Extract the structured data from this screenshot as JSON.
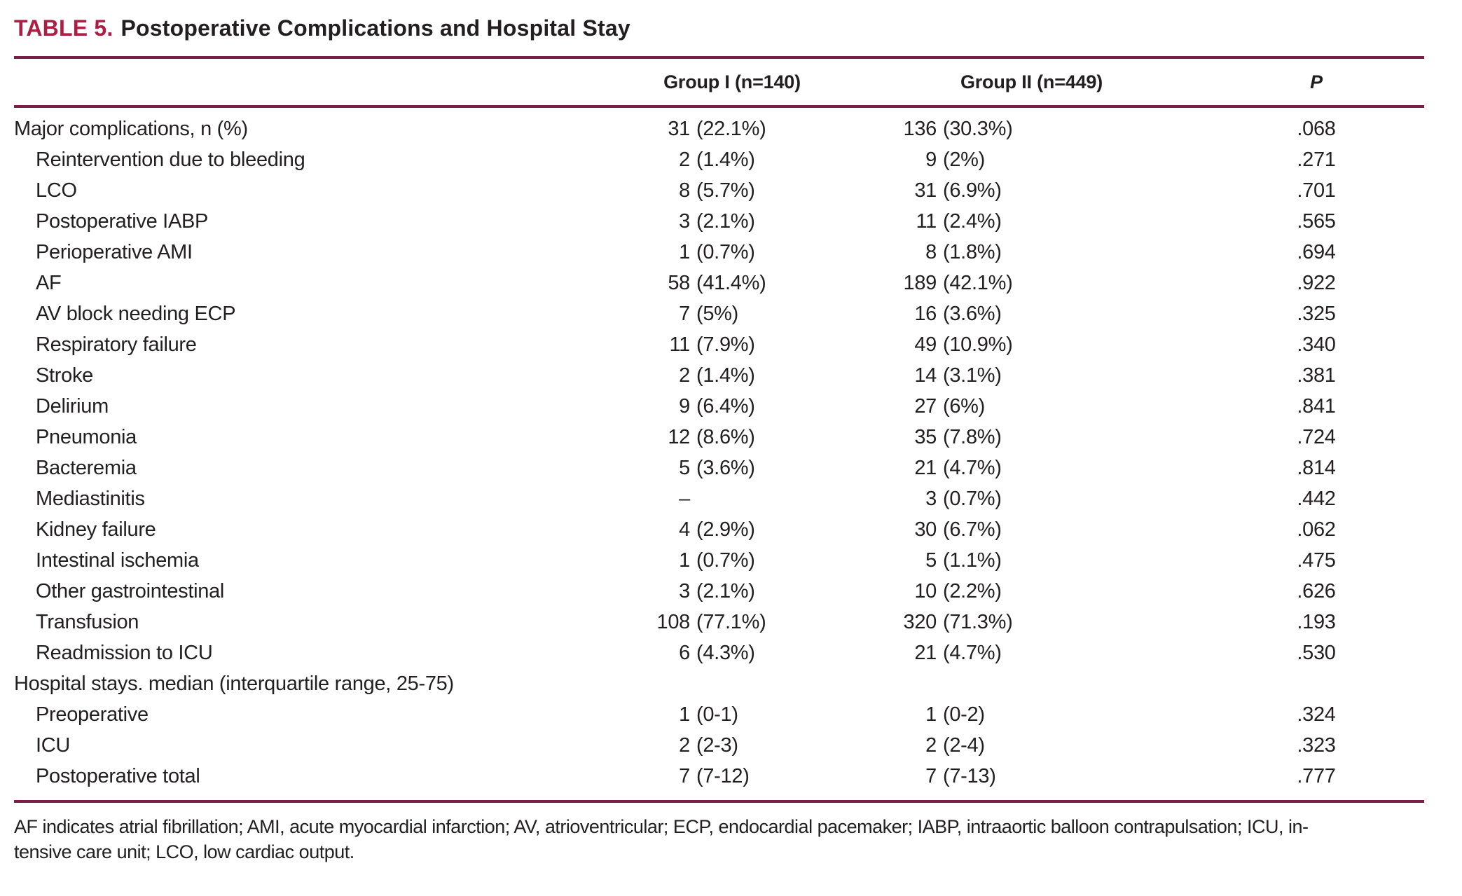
{
  "colors": {
    "accent": "#ad1e45",
    "rule": "#7a2048",
    "ink": "#231f20",
    "background": "#ffffff"
  },
  "title": {
    "label": "TABLE 5.",
    "text": "Postoperative Complications and Hospital Stay"
  },
  "columns": {
    "group1": "Group I (n=140)",
    "group2": "Group II (n=449)",
    "p": "P"
  },
  "rows": [
    {
      "label": "Major complications, n (%)",
      "indent": false,
      "g1": {
        "n": "31",
        "d": "(22.1%)"
      },
      "g2": {
        "n": "136",
        "d": "(30.3%)"
      },
      "p": ".068"
    },
    {
      "label": "Reintervention due to bleeding",
      "indent": true,
      "g1": {
        "n": "2",
        "d": "(1.4%)"
      },
      "g2": {
        "n": "9",
        "d": "(2%)"
      },
      "p": ".271"
    },
    {
      "label": "LCO",
      "indent": true,
      "g1": {
        "n": "8",
        "d": "(5.7%)"
      },
      "g2": {
        "n": "31",
        "d": "(6.9%)"
      },
      "p": ".701"
    },
    {
      "label": "Postoperative IABP",
      "indent": true,
      "g1": {
        "n": "3",
        "d": "(2.1%)"
      },
      "g2": {
        "n": "11",
        "d": "(2.4%)"
      },
      "p": ".565"
    },
    {
      "label": "Perioperative AMI",
      "indent": true,
      "g1": {
        "n": "1",
        "d": "(0.7%)"
      },
      "g2": {
        "n": "8",
        "d": "(1.8%)"
      },
      "p": ".694"
    },
    {
      "label": "AF",
      "indent": true,
      "g1": {
        "n": "58",
        "d": "(41.4%)"
      },
      "g2": {
        "n": "189",
        "d": "(42.1%)"
      },
      "p": ".922"
    },
    {
      "label": "AV block needing ECP",
      "indent": true,
      "g1": {
        "n": "7",
        "d": "(5%)"
      },
      "g2": {
        "n": "16",
        "d": "(3.6%)"
      },
      "p": ".325"
    },
    {
      "label": "Respiratory failure",
      "indent": true,
      "g1": {
        "n": "11",
        "d": "(7.9%)"
      },
      "g2": {
        "n": "49",
        "d": "(10.9%)"
      },
      "p": ".340"
    },
    {
      "label": "Stroke",
      "indent": true,
      "g1": {
        "n": "2",
        "d": "(1.4%)"
      },
      "g2": {
        "n": "14",
        "d": "(3.1%)"
      },
      "p": ".381"
    },
    {
      "label": "Delirium",
      "indent": true,
      "g1": {
        "n": "9",
        "d": "(6.4%)"
      },
      "g2": {
        "n": "27",
        "d": "(6%)"
      },
      "p": ".841"
    },
    {
      "label": "Pneumonia",
      "indent": true,
      "g1": {
        "n": "12",
        "d": "(8.6%)"
      },
      "g2": {
        "n": "35",
        "d": "(7.8%)"
      },
      "p": ".724"
    },
    {
      "label": "Bacteremia",
      "indent": true,
      "g1": {
        "n": "5",
        "d": "(3.6%)"
      },
      "g2": {
        "n": "21",
        "d": "(4.7%)"
      },
      "p": ".814"
    },
    {
      "label": "Mediastinitis",
      "indent": true,
      "g1": {
        "n": "–",
        "d": ""
      },
      "g2": {
        "n": "3",
        "d": "(0.7%)"
      },
      "p": ".442"
    },
    {
      "label": "Kidney failure",
      "indent": true,
      "g1": {
        "n": "4",
        "d": "(2.9%)"
      },
      "g2": {
        "n": "30",
        "d": "(6.7%)"
      },
      "p": ".062"
    },
    {
      "label": "Intestinal ischemia",
      "indent": true,
      "g1": {
        "n": "1",
        "d": "(0.7%)"
      },
      "g2": {
        "n": "5",
        "d": "(1.1%)"
      },
      "p": ".475"
    },
    {
      "label": "Other gastrointestinal",
      "indent": true,
      "g1": {
        "n": "3",
        "d": "(2.1%)"
      },
      "g2": {
        "n": "10",
        "d": "(2.2%)"
      },
      "p": ".626"
    },
    {
      "label": "Transfusion",
      "indent": true,
      "g1": {
        "n": "108",
        "d": "(77.1%)"
      },
      "g2": {
        "n": "320",
        "d": "(71.3%)"
      },
      "p": ".193"
    },
    {
      "label": "Readmission to ICU",
      "indent": true,
      "g1": {
        "n": "6",
        "d": "(4.3%)"
      },
      "g2": {
        "n": "21",
        "d": "(4.7%)"
      },
      "p": ".530"
    },
    {
      "label": "Hospital stays. median (interquartile range, 25-75)",
      "indent": false,
      "g1": {
        "n": "",
        "d": ""
      },
      "g2": {
        "n": "",
        "d": ""
      },
      "p": ""
    },
    {
      "label": "Preoperative",
      "indent": true,
      "g1": {
        "n": "1",
        "d": "(0-1)"
      },
      "g2": {
        "n": "1",
        "d": "(0-2)"
      },
      "p": ".324"
    },
    {
      "label": "ICU",
      "indent": true,
      "g1": {
        "n": "2",
        "d": "(2-3)"
      },
      "g2": {
        "n": "2",
        "d": "(2-4)"
      },
      "p": ".323"
    },
    {
      "label": "Postoperative total",
      "indent": true,
      "g1": {
        "n": "7",
        "d": "(7-12)"
      },
      "g2": {
        "n": "7",
        "d": "(7-13)"
      },
      "p": ".777"
    }
  ],
  "footnote": {
    "line1": "AF indicates atrial fibrillation; AMI, acute myocardial infarction; AV, atrioventricular; ECP, endocardial pacemaker; IABP, intraaortic balloon contrapulsation; ICU, in-",
    "line2": "tensive care unit; LCO, low cardiac output."
  }
}
